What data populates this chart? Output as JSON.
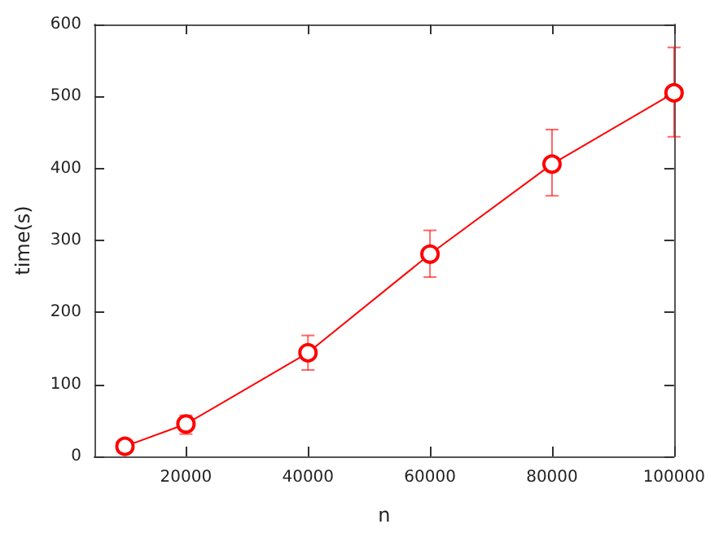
{
  "chart_data": {
    "type": "line",
    "xlabel": "n",
    "ylabel": "time(s)",
    "x": [
      10000,
      20000,
      40000,
      60000,
      80000,
      100000
    ],
    "series": [
      {
        "color": "#ff0000",
        "values": [
          14,
          45,
          144,
          281,
          406,
          505
        ],
        "errors": [
          [
            10,
            21
          ],
          [
            31,
            57
          ],
          [
            120,
            168
          ],
          [
            249,
            314
          ],
          [
            362,
            454
          ],
          [
            444,
            568
          ]
        ]
      }
    ],
    "xlim": [
      5000,
      100000
    ],
    "xticks": [
      20000,
      40000,
      60000,
      80000,
      100000
    ],
    "ylim": [
      0,
      600
    ],
    "yticks": [
      0,
      100,
      200,
      300,
      400,
      500,
      600
    ],
    "marker": "circle",
    "line_style": "solid"
  }
}
